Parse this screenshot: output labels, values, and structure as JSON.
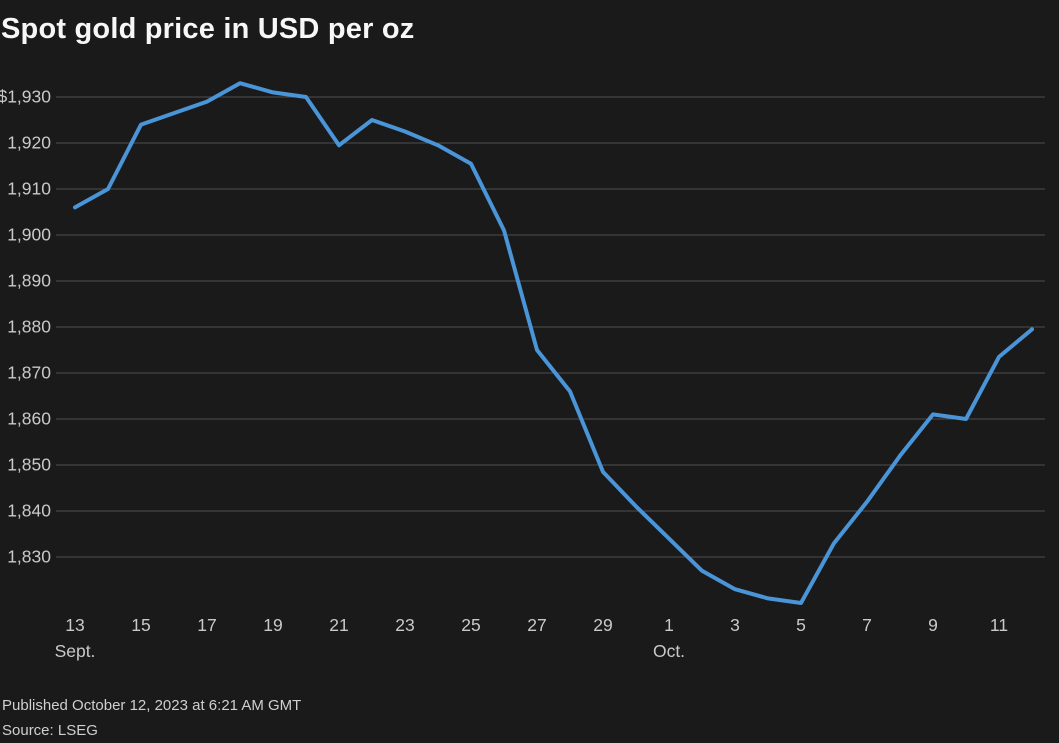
{
  "chart": {
    "title": "Spot gold price in USD per oz",
    "published": "Published October 12, 2023 at 6:21 AM GMT",
    "source": "Source: LSEG"
  },
  "chart_data": {
    "type": "line",
    "title": "Spot gold price in USD per oz",
    "ylabel": "",
    "xlabel": "",
    "ylim": [
      1815,
      1935
    ],
    "grid": true,
    "legend": "none",
    "line_color": "#4a94d8",
    "grid_color": "#4d4d4d",
    "tick_label_color": "#c9c9c9",
    "x": [
      "Sept. 13",
      "Sept. 14",
      "Sept. 15",
      "Sept. 16",
      "Sept. 17",
      "Sept. 18",
      "Sept. 19",
      "Sept. 20",
      "Sept. 21",
      "Sept. 22",
      "Sept. 23",
      "Sept. 24",
      "Sept. 25",
      "Sept. 26",
      "Sept. 27",
      "Sept. 28",
      "Sept. 29",
      "Sept. 30",
      "Oct. 1",
      "Oct. 2",
      "Oct. 3",
      "Oct. 4",
      "Oct. 5",
      "Oct. 6",
      "Oct. 7",
      "Oct. 8",
      "Oct. 9",
      "Oct. 10",
      "Oct. 11",
      "Oct. 12"
    ],
    "values": [
      1906,
      1910,
      1924,
      1926.5,
      1929,
      1933,
      1931,
      1930,
      1919.5,
      1925,
      1922.5,
      1919.5,
      1915.5,
      1901,
      1875,
      1866,
      1848.5,
      1841,
      1834,
      1827,
      1823,
      1821,
      1820,
      1833,
      1842,
      1852,
      1861,
      1860,
      1873.5,
      1879.5
    ],
    "y_ticks": [
      {
        "value": 1930,
        "label": "$1,930"
      },
      {
        "value": 1920,
        "label": "1,920"
      },
      {
        "value": 1910,
        "label": "1,910"
      },
      {
        "value": 1900,
        "label": "1,900"
      },
      {
        "value": 1890,
        "label": "1,890"
      },
      {
        "value": 1880,
        "label": "1,880"
      },
      {
        "value": 1870,
        "label": "1,870"
      },
      {
        "value": 1860,
        "label": "1,860"
      },
      {
        "value": 1850,
        "label": "1,850"
      },
      {
        "value": 1840,
        "label": "1,840"
      },
      {
        "value": 1830,
        "label": "1,830"
      }
    ],
    "x_ticks": [
      {
        "index": 0,
        "label": "13",
        "sub": "Sept."
      },
      {
        "index": 2,
        "label": "15"
      },
      {
        "index": 4,
        "label": "17"
      },
      {
        "index": 6,
        "label": "19"
      },
      {
        "index": 8,
        "label": "21"
      },
      {
        "index": 10,
        "label": "23"
      },
      {
        "index": 12,
        "label": "25"
      },
      {
        "index": 14,
        "label": "27"
      },
      {
        "index": 16,
        "label": "29"
      },
      {
        "index": 18,
        "label": "1",
        "sub": "Oct."
      },
      {
        "index": 20,
        "label": "3"
      },
      {
        "index": 22,
        "label": "5"
      },
      {
        "index": 24,
        "label": "7"
      },
      {
        "index": 26,
        "label": "9"
      },
      {
        "index": 28,
        "label": "11"
      }
    ]
  }
}
